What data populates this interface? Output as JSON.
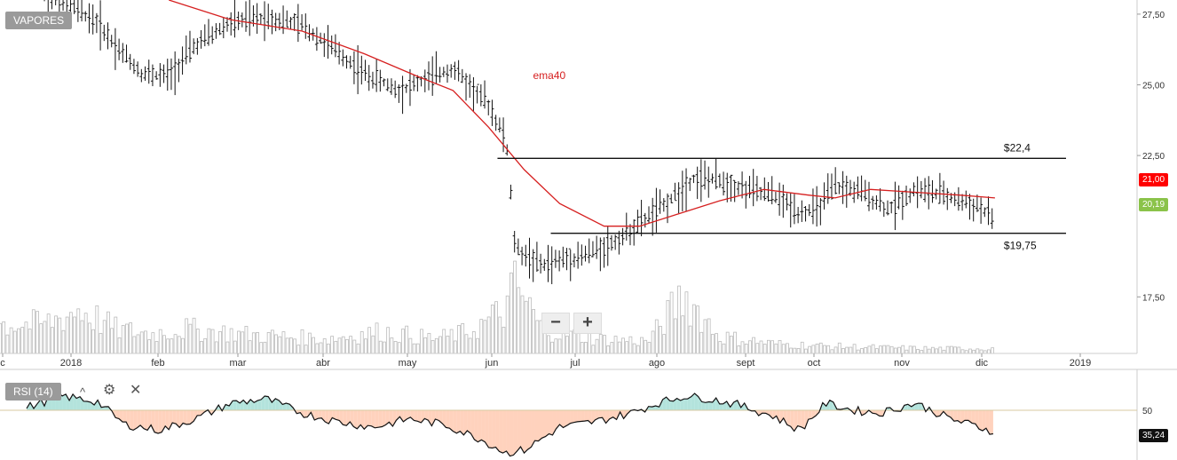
{
  "symbol_tag": "VAPORES",
  "indicator": {
    "label": "RSI (14)",
    "level_label": "50",
    "last_value": "35,24",
    "level": 50
  },
  "icons": {
    "settings": "gear-icon",
    "close": "close-icon",
    "zoom_out": "minus-icon",
    "zoom_in": "plus-icon",
    "hide": "caret-icon"
  },
  "zoom": {
    "out_label": "−",
    "in_label": "+"
  },
  "colors": {
    "ema": "#d62020",
    "current_price": "#8bc34a",
    "ema_badge": "#ff0000",
    "rsi_up": "#b3e3dc",
    "rsi_down": "#ffd2bd"
  },
  "chart_data": {
    "type": "bar",
    "title": "",
    "ylim": [
      15.5,
      28.0
    ],
    "price_ticks": [
      "27,50",
      "25,00",
      "22,50",
      "17,50"
    ],
    "x_labels": [
      "c",
      "2018",
      "feb",
      "mar",
      "abr",
      "may",
      "jun",
      "jul",
      "ago",
      "sept",
      "oct",
      "nov",
      "dic",
      "2019"
    ],
    "ema_label": "ema40",
    "resistance": {
      "value": 22.4,
      "label": "$22,4"
    },
    "support": {
      "value": 19.75,
      "label": "$19,75"
    },
    "last_price": {
      "value": 20.19,
      "label": "20,19"
    },
    "ema_last": {
      "value": 21.0,
      "label": "21,00"
    },
    "price_series": [
      [
        2018.04,
        28.2
      ],
      [
        2018.08,
        27.6
      ],
      [
        2018.1,
        27.2
      ],
      [
        2018.12,
        26.4
      ],
      [
        2018.15,
        25.4
      ],
      [
        2018.18,
        25.3
      ],
      [
        2018.21,
        26.4
      ],
      [
        2018.25,
        27.2
      ],
      [
        2018.29,
        27.4
      ],
      [
        2018.33,
        27.1
      ],
      [
        2018.36,
        26.4
      ],
      [
        2018.4,
        25.4
      ],
      [
        2018.44,
        24.8
      ],
      [
        2018.47,
        25.2
      ],
      [
        2018.5,
        25.6
      ],
      [
        2018.52,
        24.9
      ],
      [
        2018.54,
        24.3
      ],
      [
        2018.56,
        23.0
      ],
      [
        2018.57,
        19.2
      ],
      [
        2018.58,
        19.0
      ],
      [
        2018.6,
        18.6
      ],
      [
        2018.62,
        18.8
      ],
      [
        2018.65,
        19.0
      ],
      [
        2018.68,
        19.4
      ],
      [
        2018.71,
        20.1
      ],
      [
        2018.74,
        20.8
      ],
      [
        2018.77,
        21.7
      ],
      [
        2018.8,
        21.6
      ],
      [
        2018.83,
        21.3
      ],
      [
        2018.86,
        21.1
      ],
      [
        2018.89,
        20.5
      ],
      [
        2018.91,
        20.6
      ],
      [
        2018.93,
        21.4
      ],
      [
        2018.96,
        21.2
      ],
      [
        2018.99,
        20.6
      ],
      [
        2019.02,
        21.3
      ],
      [
        2019.05,
        21.1
      ],
      [
        2019.09,
        20.7
      ],
      [
        2019.11,
        20.2
      ]
    ],
    "ema_series": [
      [
        2018.18,
        28.0
      ],
      [
        2018.25,
        27.3
      ],
      [
        2018.33,
        26.9
      ],
      [
        2018.4,
        26.1
      ],
      [
        2018.46,
        25.3
      ],
      [
        2018.5,
        24.8
      ],
      [
        2018.54,
        23.5
      ],
      [
        2018.58,
        22.0
      ],
      [
        2018.62,
        20.8
      ],
      [
        2018.67,
        20.0
      ],
      [
        2018.71,
        20.0
      ],
      [
        2018.75,
        20.4
      ],
      [
        2018.8,
        20.9
      ],
      [
        2018.85,
        21.3
      ],
      [
        2018.9,
        21.1
      ],
      [
        2018.93,
        21.0
      ],
      [
        2018.97,
        21.3
      ],
      [
        2019.02,
        21.2
      ],
      [
        2019.07,
        21.1
      ],
      [
        2019.11,
        21.0
      ]
    ],
    "volume_series": [
      [
        2018.04,
        0.6
      ],
      [
        2018.08,
        0.9
      ],
      [
        2018.12,
        0.5
      ],
      [
        2018.16,
        0.4
      ],
      [
        2018.2,
        0.5
      ],
      [
        2018.26,
        0.4
      ],
      [
        2018.3,
        0.35
      ],
      [
        2018.36,
        0.3
      ],
      [
        2018.42,
        0.45
      ],
      [
        2018.48,
        0.3
      ],
      [
        2018.52,
        0.45
      ],
      [
        2018.56,
        0.9
      ],
      [
        2018.57,
        1.4
      ],
      [
        2018.6,
        0.5
      ],
      [
        2018.66,
        0.3
      ],
      [
        2018.72,
        0.25
      ],
      [
        2018.76,
        1.2
      ],
      [
        2018.8,
        0.35
      ],
      [
        2018.86,
        0.2
      ],
      [
        2018.92,
        0.15
      ],
      [
        2018.98,
        0.12
      ],
      [
        2019.04,
        0.1
      ],
      [
        2019.11,
        0.1
      ]
    ],
    "rsi_series": [
      [
        2018.02,
        52
      ],
      [
        2018.06,
        60
      ],
      [
        2018.1,
        56
      ],
      [
        2018.13,
        40
      ],
      [
        2018.17,
        36
      ],
      [
        2018.21,
        44
      ],
      [
        2018.25,
        55
      ],
      [
        2018.29,
        58
      ],
      [
        2018.33,
        48
      ],
      [
        2018.37,
        42
      ],
      [
        2018.41,
        38
      ],
      [
        2018.45,
        44
      ],
      [
        2018.49,
        40
      ],
      [
        2018.53,
        30
      ],
      [
        2018.56,
        20
      ],
      [
        2018.58,
        22
      ],
      [
        2018.62,
        38
      ],
      [
        2018.66,
        42
      ],
      [
        2018.7,
        48
      ],
      [
        2018.73,
        55
      ],
      [
        2018.76,
        60
      ],
      [
        2018.79,
        58
      ],
      [
        2018.82,
        54
      ],
      [
        2018.86,
        46
      ],
      [
        2018.89,
        36
      ],
      [
        2018.92,
        55
      ],
      [
        2018.95,
        50
      ],
      [
        2018.98,
        48
      ],
      [
        2019.02,
        55
      ],
      [
        2019.06,
        44
      ],
      [
        2019.11,
        35
      ]
    ]
  }
}
